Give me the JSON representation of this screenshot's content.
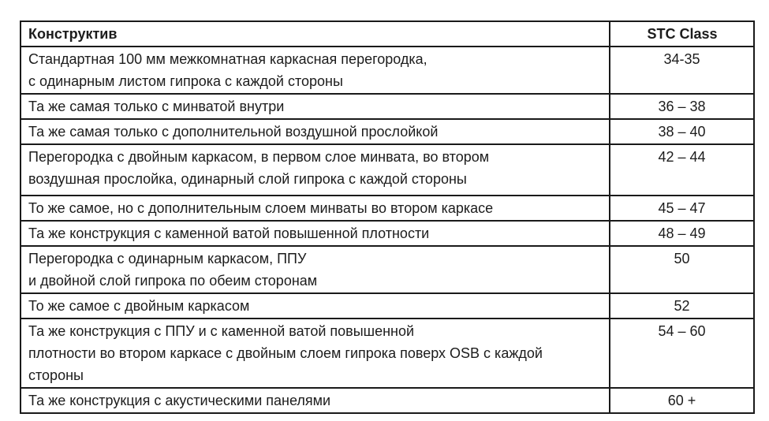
{
  "table": {
    "header": {
      "construction": "Конструктив",
      "stc": "STC Class"
    },
    "rows": [
      {
        "construction": "Стандартная 100 мм межкомнатная каркасная перегородка,\nс одинарным листом гипрока с каждой стороны",
        "stc": "34-35"
      },
      {
        "construction": "Та же самая только с минватой внутри",
        "stc": "36 – 38"
      },
      {
        "construction": "Та же самая только с дополнительной воздушной прослойкой",
        "stc": "38 – 40"
      },
      {
        "construction": "Перегородка с двойным каркасом, в первом слое минвата, во втором\nвоздушная прослойка, одинарный слой гипрока с каждой стороны",
        "stc": "42 – 44"
      },
      {
        "construction": "То же самое, но с дополнительным слоем минваты во втором каркасе",
        "stc": "45 – 47"
      },
      {
        "construction": "Та же конструкция с каменной ватой повышенной плотности",
        "stc": "48 – 49"
      },
      {
        "construction": "Перегородка с одинарным каркасом, ППУ\nи двойной слой гипрока по обеим сторонам",
        "stc": "50"
      },
      {
        "construction": "То же самое с двойным каркасом",
        "stc": "52"
      },
      {
        "construction": "Та же конструкция с ППУ и с каменной ватой повышенной\nплотности во втором каркасе с двойным слоем гипрока поверх OSB с каждой\nстороны",
        "stc": "54 – 60"
      },
      {
        "construction": "Та же конструкция с акустическими панелями",
        "stc": "60 +"
      }
    ],
    "colors": {
      "border": "#1a1a1a",
      "text": "#1c1c1c",
      "background": "#ffffff"
    }
  }
}
